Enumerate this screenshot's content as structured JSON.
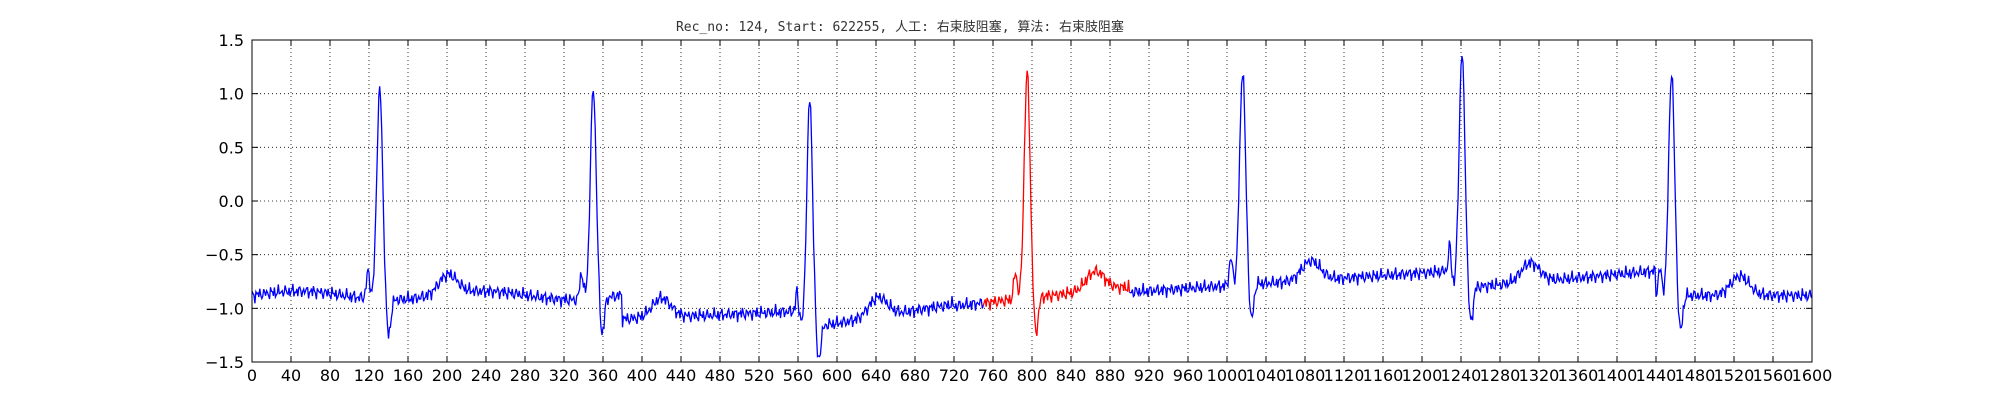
{
  "chart_data": {
    "type": "line",
    "title": "Rec_no: 124, Start: 622255, 人工: 右束肢阻塞, 算法: 右束肢阻塞",
    "xlabel": "",
    "ylabel": "",
    "xlim": [
      0,
      1600
    ],
    "ylim": [
      -1.5,
      1.5
    ],
    "grid": true,
    "y_ticks": [
      1.5,
      1.0,
      0.5,
      0.0,
      -0.5,
      -1.0,
      -1.5
    ],
    "y_tick_labels": [
      "1.5",
      "1.0",
      "0.5",
      "0.0",
      "−0.5",
      "−1.0",
      "−1.5"
    ],
    "x_ticks": [
      0,
      40,
      80,
      120,
      160,
      200,
      240,
      280,
      320,
      360,
      400,
      440,
      480,
      520,
      560,
      600,
      640,
      680,
      720,
      760,
      800,
      840,
      880,
      920,
      960,
      1000,
      1040,
      1080,
      1120,
      1160,
      1200,
      1240,
      1280,
      1320,
      1360,
      1400,
      1440,
      1480,
      1520,
      1560,
      1600
    ],
    "x_tick_labels": [
      "0",
      "40",
      "80",
      "120",
      "160",
      "200",
      "240",
      "280",
      "320",
      "360",
      "400",
      "440",
      "480",
      "520",
      "560",
      "600",
      "640",
      "680",
      "720",
      "760",
      "800",
      "840",
      "880",
      "920",
      "960",
      "1000",
      "1040",
      "1080",
      "1120",
      "1160",
      "1200",
      "1240",
      "1280",
      "1320",
      "1360",
      "1400",
      "1440",
      "1480",
      "1520",
      "1560",
      "1600"
    ],
    "series": [
      {
        "color": "#0000ff",
        "x_range": [
          0,
          750
        ]
      },
      {
        "color": "#ff0000",
        "x_range": [
          750,
          900
        ]
      },
      {
        "color": "#0000ff",
        "x_range": [
          900,
          1600
        ]
      }
    ],
    "beats": [
      {
        "x": 131,
        "peak": 1.05
      },
      {
        "x": 350,
        "peak": 1.05
      },
      {
        "x": 572,
        "peak": 0.95
      },
      {
        "x": 795,
        "peak": 1.2
      },
      {
        "x": 1016,
        "peak": 1.22
      },
      {
        "x": 1241,
        "peak": 1.38
      },
      {
        "x": 1456,
        "peak": 1.2
      }
    ]
  }
}
